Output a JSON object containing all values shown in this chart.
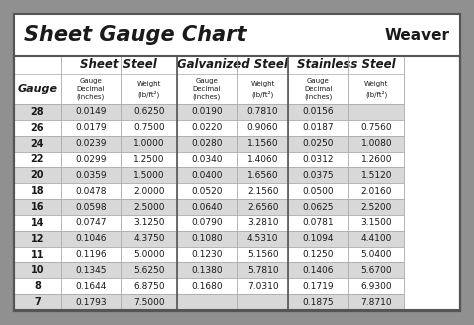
{
  "title": "Sheet Gauge Chart",
  "weaver_text": "Weaver",
  "bg_outer": "#909090",
  "bg_white": "#ffffff",
  "bg_gray_row": "#d8d8d8",
  "bg_gray_header": "#f2f2f2",
  "text_dark": "#1a1a1a",
  "border_dark": "#555555",
  "border_light": "#aaaaaa",
  "gauges": [
    28,
    26,
    24,
    22,
    20,
    18,
    16,
    14,
    12,
    11,
    10,
    8,
    7
  ],
  "sheet_steel_decimal": [
    "0.0149",
    "0.0179",
    "0.0239",
    "0.0299",
    "0.0359",
    "0.0478",
    "0.0598",
    "0.0747",
    "0.1046",
    "0.1196",
    "0.1345",
    "0.1644",
    "0.1793"
  ],
  "sheet_steel_weight": [
    "0.6250",
    "0.7500",
    "1.0000",
    "1.2500",
    "1.5000",
    "2.0000",
    "2.5000",
    "3.1250",
    "4.3750",
    "5.0000",
    "5.6250",
    "6.8750",
    "7.5000"
  ],
  "galv_decimal": [
    "0.0190",
    "0.0220",
    "0.0280",
    "0.0340",
    "0.0400",
    "0.0520",
    "0.0640",
    "0.0790",
    "0.1080",
    "0.1230",
    "0.1380",
    "0.1680",
    ""
  ],
  "galv_weight": [
    "0.7810",
    "0.9060",
    "1.1560",
    "1.4060",
    "1.6560",
    "2.1560",
    "2.6560",
    "3.2810",
    "4.5310",
    "5.1560",
    "5.7810",
    "7.0310",
    ""
  ],
  "stain_decimal": [
    "0.0156",
    "0.0187",
    "0.0250",
    "0.0312",
    "0.0375",
    "0.0500",
    "0.0625",
    "0.0781",
    "0.1094",
    "0.1250",
    "0.1406",
    "0.1719",
    "0.1875"
  ],
  "stain_weight": [
    "",
    "0.7560",
    "1.0080",
    "1.2600",
    "1.5120",
    "2.0160",
    "2.5200",
    "3.1500",
    "4.4100",
    "5.0400",
    "5.6700",
    "6.9300",
    "7.8710"
  ]
}
